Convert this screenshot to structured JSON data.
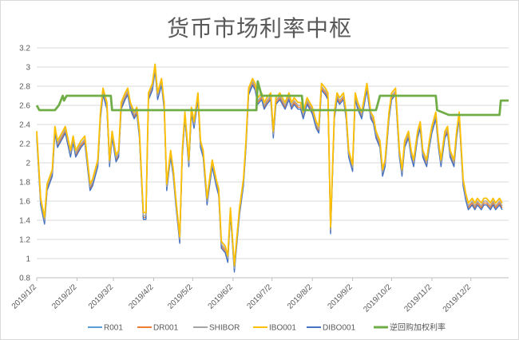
{
  "chart_data": {
    "type": "line",
    "title": "货币市场利率中枢",
    "xlabel": "",
    "ylabel": "",
    "ylim": [
      0.8,
      3.2
    ],
    "yticks": [
      "0.8",
      "1",
      "1.2",
      "1.4",
      "1.6",
      "1.8",
      "2",
      "2.2",
      "2.4",
      "2.6",
      "2.8",
      "3",
      "3.2"
    ],
    "x_ticks": [
      "2019/1/2",
      "2019/2/2",
      "2019/3/2",
      "2019/4/2",
      "2019/5/2",
      "2019/6/2",
      "2019/7/2",
      "2019/8/2",
      "2019/9/2",
      "2019/10/2",
      "2019/11/2",
      "2019/12/2"
    ],
    "grid": "horizontal",
    "legend_position": "bottom",
    "x": [
      "2019-01-02",
      "2019-01-05",
      "2019-01-08",
      "2019-01-10",
      "2019-01-14",
      "2019-01-16",
      "2019-01-18",
      "2019-01-22",
      "2019-01-24",
      "2019-01-28",
      "2019-01-30",
      "2019-02-01",
      "2019-02-05",
      "2019-02-08",
      "2019-02-12",
      "2019-02-14",
      "2019-02-18",
      "2019-02-20",
      "2019-02-22",
      "2019-02-25",
      "2019-02-27",
      "2019-03-01",
      "2019-03-04",
      "2019-03-06",
      "2019-03-08",
      "2019-03-11",
      "2019-03-13",
      "2019-03-15",
      "2019-03-18",
      "2019-03-20",
      "2019-03-22",
      "2019-03-25",
      "2019-03-27",
      "2019-03-29",
      "2019-04-01",
      "2019-04-03",
      "2019-04-05",
      "2019-04-08",
      "2019-04-10",
      "2019-04-12",
      "2019-04-15",
      "2019-04-17",
      "2019-04-19",
      "2019-04-22",
      "2019-04-24",
      "2019-04-26",
      "2019-04-29",
      "2019-05-01",
      "2019-05-03",
      "2019-05-06",
      "2019-05-08",
      "2019-05-10",
      "2019-05-13",
      "2019-05-15",
      "2019-05-17",
      "2019-05-20",
      "2019-05-22",
      "2019-05-24",
      "2019-05-27",
      "2019-05-29",
      "2019-05-31",
      "2019-06-03",
      "2019-06-05",
      "2019-06-07",
      "2019-06-10",
      "2019-06-12",
      "2019-06-14",
      "2019-06-17",
      "2019-06-19",
      "2019-06-21",
      "2019-06-24",
      "2019-06-26",
      "2019-06-28",
      "2019-07-01",
      "2019-07-03",
      "2019-07-05",
      "2019-07-08",
      "2019-07-10",
      "2019-07-12",
      "2019-07-15",
      "2019-07-17",
      "2019-07-19",
      "2019-07-22",
      "2019-07-24",
      "2019-07-26",
      "2019-07-29",
      "2019-07-31",
      "2019-08-02",
      "2019-08-05",
      "2019-08-07",
      "2019-08-09",
      "2019-08-12",
      "2019-08-14",
      "2019-08-16",
      "2019-08-19",
      "2019-08-21",
      "2019-08-23",
      "2019-08-26",
      "2019-08-28",
      "2019-08-30",
      "2019-09-02",
      "2019-09-04",
      "2019-09-06",
      "2019-09-09",
      "2019-09-11",
      "2019-09-13",
      "2019-09-16",
      "2019-09-18",
      "2019-09-20",
      "2019-09-23",
      "2019-09-25",
      "2019-09-27",
      "2019-09-30",
      "2019-10-02",
      "2019-10-05",
      "2019-10-08",
      "2019-10-10",
      "2019-10-12",
      "2019-10-15",
      "2019-10-17",
      "2019-10-19",
      "2019-10-22",
      "2019-10-24",
      "2019-10-26",
      "2019-10-29",
      "2019-10-31",
      "2019-11-02",
      "2019-11-05",
      "2019-11-07",
      "2019-11-09",
      "2019-11-12",
      "2019-11-14",
      "2019-11-16",
      "2019-11-19",
      "2019-11-21",
      "2019-11-23",
      "2019-11-26",
      "2019-11-28",
      "2019-11-30",
      "2019-12-03",
      "2019-12-05",
      "2019-12-07",
      "2019-12-10",
      "2019-12-12",
      "2019-12-14",
      "2019-12-17",
      "2019-12-19",
      "2019-12-21",
      "2019-12-24",
      "2019-12-26",
      "2019-12-28",
      "2019-12-31"
    ],
    "base_values": [
      2.3,
      1.6,
      1.4,
      1.75,
      1.9,
      2.35,
      2.2,
      2.3,
      2.35,
      2.1,
      2.25,
      2.1,
      2.2,
      2.25,
      1.75,
      1.8,
      2.0,
      2.5,
      2.75,
      2.6,
      2.0,
      2.3,
      2.05,
      2.1,
      2.6,
      2.7,
      2.75,
      2.6,
      2.5,
      2.55,
      2.3,
      1.45,
      1.45,
      2.7,
      2.8,
      3.0,
      2.7,
      2.85,
      2.6,
      1.75,
      2.1,
      1.9,
      1.6,
      1.2,
      2.1,
      2.5,
      2.0,
      2.55,
      2.4,
      2.7,
      2.2,
      2.1,
      1.6,
      1.8,
      2.0,
      1.8,
      1.7,
      1.15,
      1.1,
      1.0,
      1.5,
      0.9,
      1.2,
      1.5,
      1.8,
      2.2,
      2.75,
      2.85,
      2.8,
      2.65,
      2.7,
      2.6,
      2.65,
      2.7,
      2.3,
      2.65,
      2.7,
      2.65,
      2.6,
      2.7,
      2.6,
      2.65,
      2.6,
      2.6,
      2.5,
      2.65,
      2.6,
      2.55,
      2.4,
      2.35,
      2.8,
      2.75,
      2.7,
      1.3,
      2.5,
      2.7,
      2.65,
      2.7,
      2.5,
      2.1,
      1.95,
      2.7,
      2.6,
      2.5,
      2.65,
      2.8,
      2.5,
      2.45,
      2.3,
      2.2,
      1.9,
      2.0,
      2.5,
      2.7,
      2.75,
      2.1,
      1.9,
      2.2,
      2.3,
      2.1,
      2.0,
      2.3,
      2.4,
      2.1,
      2.0,
      2.2,
      2.35,
      2.5,
      2.2,
      2.0,
      2.3,
      2.35,
      2.1,
      2.0,
      2.3,
      2.5,
      1.8,
      1.65,
      1.55,
      1.6,
      1.55,
      1.6,
      1.55,
      1.6,
      1.6,
      1.55,
      1.6,
      1.55,
      1.6,
      1.55
    ],
    "series": [
      {
        "name": "R001",
        "color": "#5b9bd5",
        "offset": 0.03
      },
      {
        "name": "DR001",
        "color": "#ed7d31",
        "offset": -0.02
      },
      {
        "name": "SHIBOR",
        "color": "#a5a5a5",
        "offset": 0.0
      },
      {
        "name": "IBO001",
        "color": "#ffc000",
        "offset": 0.03
      },
      {
        "name": "DIBO001",
        "color": "#4472c4",
        "offset": -0.04
      },
      {
        "name": "逆回购加权利率",
        "color": "#70ad47",
        "steps": [
          [
            "2019-01-02",
            2.6
          ],
          [
            "2019-01-04",
            2.55
          ],
          [
            "2019-01-16",
            2.55
          ],
          [
            "2019-01-19",
            2.6
          ],
          [
            "2019-01-22",
            2.7
          ],
          [
            "2019-01-23",
            2.65
          ],
          [
            "2019-01-25",
            2.7
          ],
          [
            "2019-02-28",
            2.7
          ],
          [
            "2019-03-01",
            2.55
          ],
          [
            "2019-06-20",
            2.55
          ],
          [
            "2019-06-21",
            2.85
          ],
          [
            "2019-06-24",
            2.7
          ],
          [
            "2019-07-25",
            2.7
          ],
          [
            "2019-07-26",
            2.55
          ],
          [
            "2019-09-20",
            2.55
          ],
          [
            "2019-09-21",
            2.6
          ],
          [
            "2019-09-23",
            2.7
          ],
          [
            "2019-11-05",
            2.7
          ],
          [
            "2019-11-06",
            2.55
          ],
          [
            "2019-11-15",
            2.5
          ],
          [
            "2019-12-24",
            2.5
          ],
          [
            "2019-12-25",
            2.65
          ],
          [
            "2019-12-31",
            2.65
          ]
        ]
      }
    ]
  }
}
